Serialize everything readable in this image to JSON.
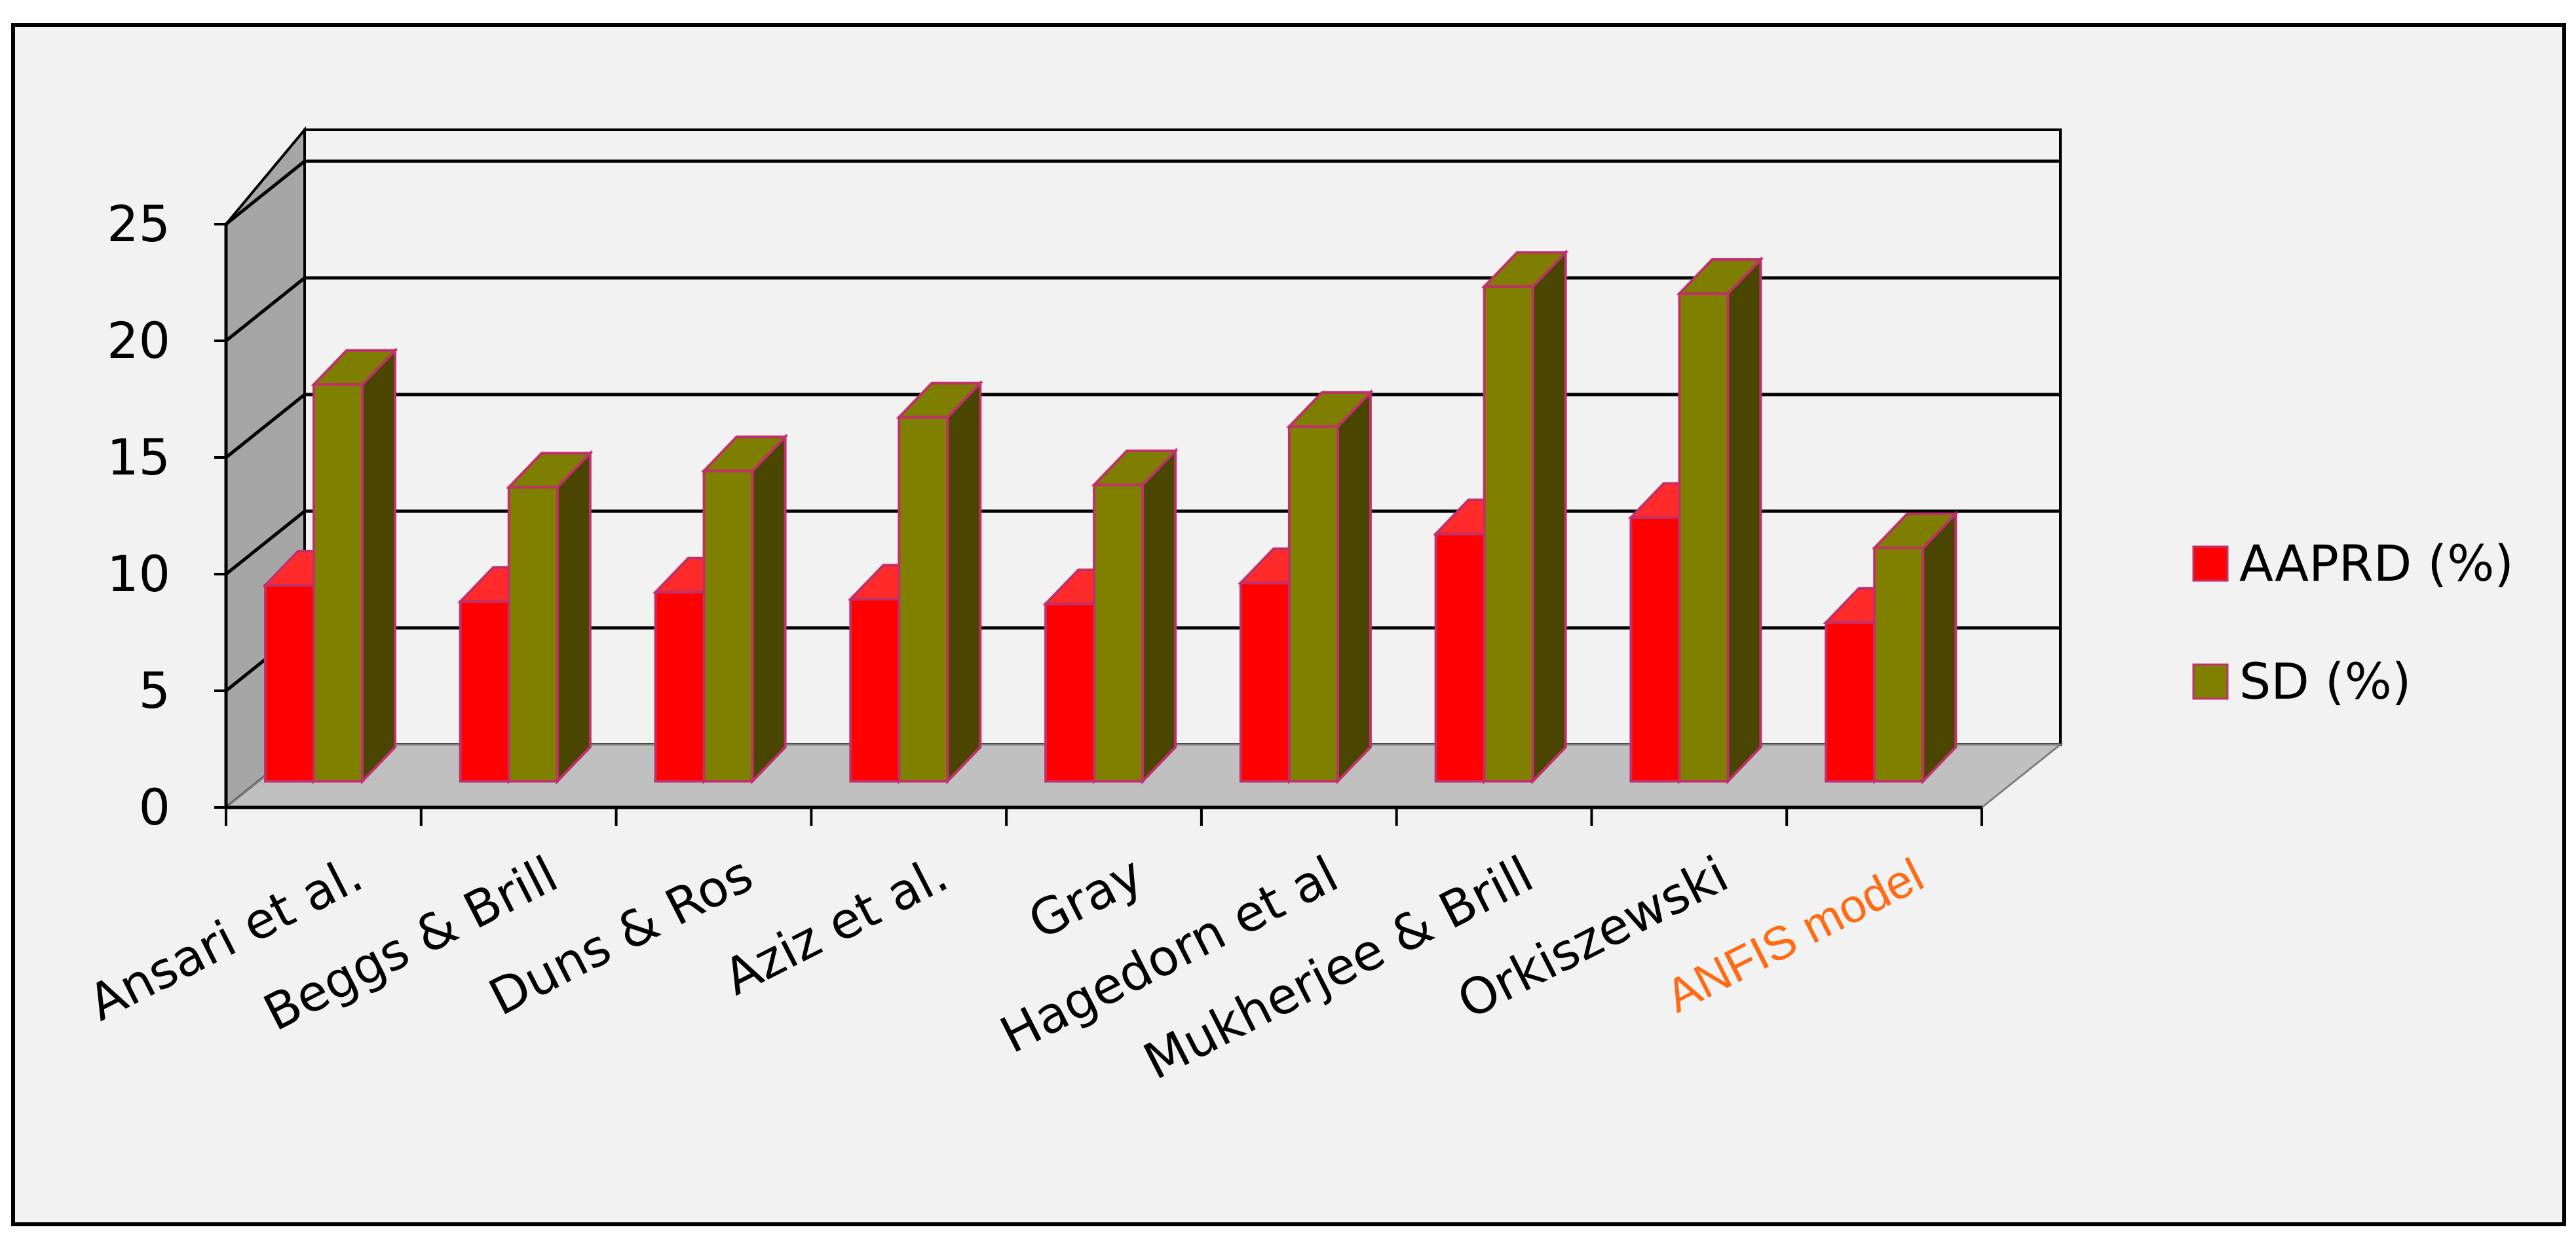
{
  "chart_data": {
    "type": "bar",
    "style": "3d-clustered-column",
    "categories": [
      "Ansari et al.",
      "Beggs & Brill",
      "Duns & Ros",
      "Aziz et al.",
      "Gray",
      "Hagedorn et al",
      "Mukherjee & Brill",
      "Orkiszewski",
      "ANFIS model"
    ],
    "highlight_category": "ANFIS model",
    "series": [
      {
        "name": "AAPRD (%)",
        "values": [
          8.4,
          7.7,
          8.1,
          7.8,
          7.6,
          8.5,
          10.6,
          11.3,
          6.8
        ]
      },
      {
        "name": "SD (%)",
        "values": [
          17.0,
          12.6,
          13.3,
          15.6,
          12.7,
          15.2,
          21.2,
          20.9,
          10.0
        ]
      }
    ],
    "ylim": [
      0,
      25
    ],
    "yticks": [
      "0",
      "5",
      "10",
      "15",
      "20",
      "25"
    ],
    "grid": true,
    "legend_position": "right",
    "colors": {
      "AAPRD (%)": {
        "front": "#ff0000",
        "side": "#8b0000",
        "top": "#ff2a2a"
      },
      "SD (%)": {
        "front": "#808000",
        "side": "#4a4500",
        "top": "#7e7e00"
      },
      "bar_outline": "#c0306a",
      "highlight_label": "#ff6a13",
      "back_wall": "#f2f2f2",
      "side_wall": "#a6a6a6",
      "floor": "#c0c0c0"
    }
  }
}
